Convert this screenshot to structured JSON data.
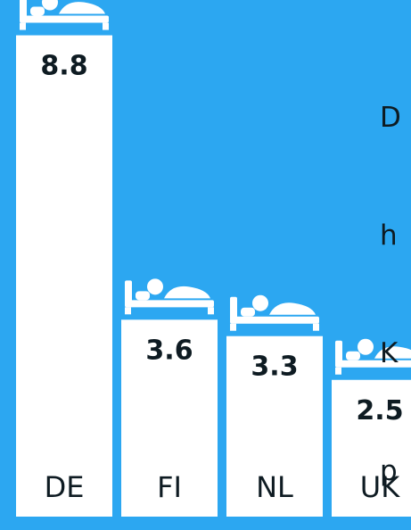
{
  "chart_data": {
    "type": "bar",
    "categories": [
      "DE",
      "FI",
      "NL",
      "UK"
    ],
    "values": [
      8.8,
      3.6,
      3.3,
      2.5
    ],
    "title": "",
    "xlabel": "",
    "ylabel": "",
    "value_labels": [
      "8.8",
      "3.6",
      "3.3",
      "2.5"
    ],
    "icon": "bed-with-person-icon",
    "colors": {
      "background": "#2CA7F1",
      "bar": "#FFFFFF",
      "text": "#0E1B22"
    }
  },
  "side_text": [
    "D",
    "h",
    "K",
    "p"
  ]
}
